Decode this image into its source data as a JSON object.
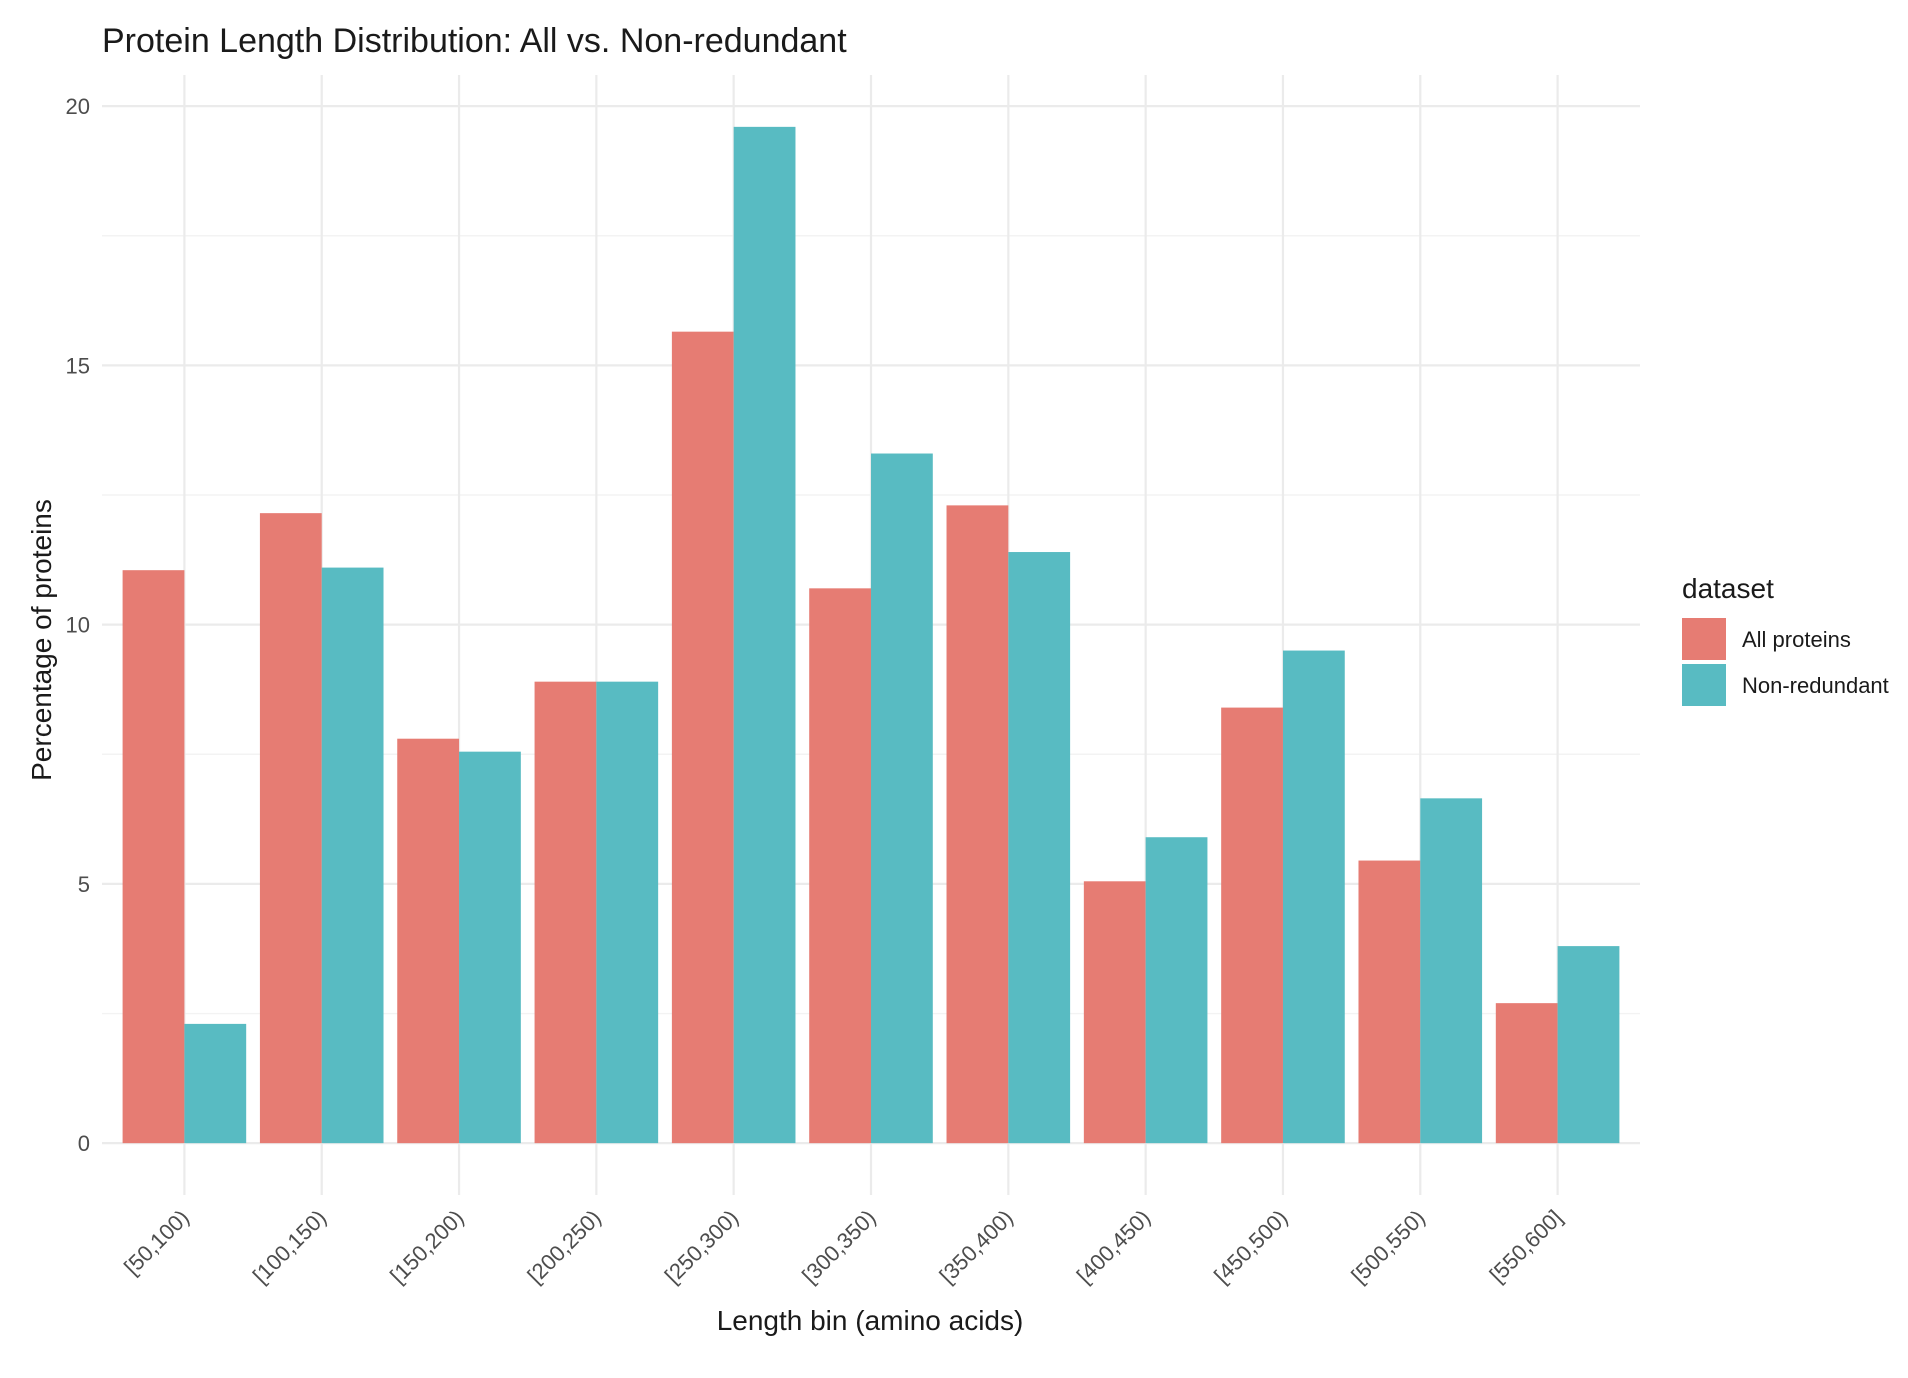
{
  "chart_data": {
    "type": "bar",
    "title": "Protein Length Distribution: All vs. Non-redundant",
    "xlabel": "Length bin (amino acids)",
    "ylabel": "Percentage of proteins",
    "categories": [
      "[50,100)",
      "[100,150)",
      "[150,200)",
      "[200,250)",
      "[250,300)",
      "[300,350)",
      "[350,400)",
      "[400,450)",
      "[450,500)",
      "[500,550)",
      "[550,600]"
    ],
    "series": [
      {
        "name": "All proteins",
        "color": "#E67C73",
        "values": [
          11.05,
          12.15,
          7.8,
          8.9,
          15.65,
          10.7,
          12.3,
          5.05,
          8.4,
          5.45,
          2.7
        ]
      },
      {
        "name": "Non-redundant",
        "color": "#58BBC2",
        "values": [
          2.3,
          11.1,
          7.55,
          8.9,
          19.6,
          13.3,
          11.4,
          5.9,
          9.5,
          6.65,
          3.8
        ]
      }
    ],
    "ylim": [
      -1,
      20.6
    ],
    "yticks": [
      0,
      5,
      10,
      15,
      20
    ],
    "grid": true,
    "legend": {
      "title": "dataset",
      "position": "right"
    }
  }
}
